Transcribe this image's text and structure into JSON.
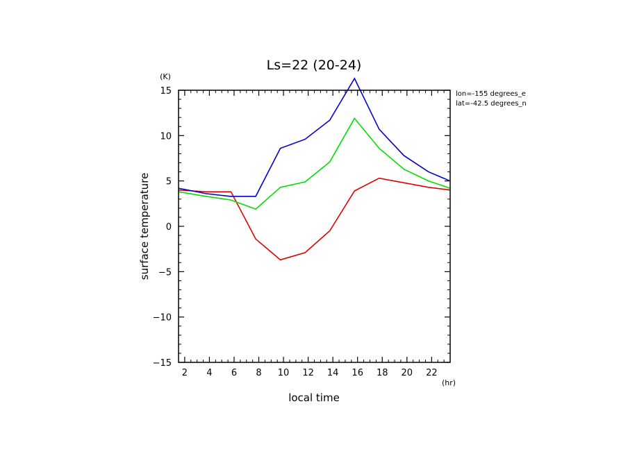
{
  "chart_data": {
    "type": "line",
    "title": "Ls=22 (20-24)",
    "xlabel": "local time",
    "xunit": "(hr)",
    "ylabel": "surface temperature",
    "yunit": "(K)",
    "xlim": [
      1.5,
      23.5
    ],
    "ylim": [
      -15,
      15
    ],
    "xticks": [
      2,
      4,
      6,
      8,
      10,
      12,
      14,
      16,
      18,
      20,
      22
    ],
    "yticks": [
      -15,
      -10,
      -5,
      0,
      5,
      10,
      15
    ],
    "annotations": [
      "lon=-155 degrees_e",
      "lat=-42.5 degrees_n"
    ],
    "grid": false,
    "x": [
      1.5,
      3.75,
      5.75,
      7.75,
      9.75,
      11.75,
      13.75,
      15.75,
      17.75,
      19.75,
      21.75,
      23.5
    ],
    "series": [
      {
        "color": "#0000cc",
        "values": [
          4.2,
          3.6,
          3.3,
          3.3,
          8.6,
          9.6,
          11.7,
          16.3,
          10.7,
          7.8,
          6.0,
          5.0
        ]
      },
      {
        "color": "#00dd00",
        "values": [
          3.8,
          3.3,
          2.9,
          1.9,
          4.3,
          4.9,
          7.1,
          11.9,
          8.6,
          6.3,
          5.0,
          4.2
        ]
      },
      {
        "color": "#dd0000",
        "values": [
          4.0,
          3.8,
          3.8,
          -1.4,
          -3.7,
          -2.9,
          -0.5,
          3.9,
          5.3,
          4.8,
          4.3,
          4.0
        ]
      }
    ]
  }
}
